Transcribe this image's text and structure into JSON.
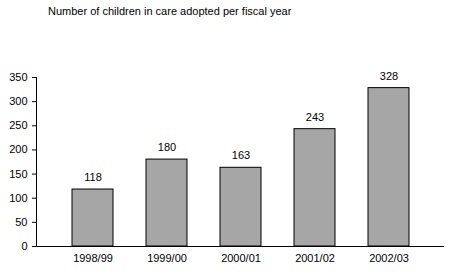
{
  "chart_data": {
    "type": "bar",
    "title": "Number of children in care adopted per fiscal year",
    "categories": [
      "1998/99",
      "1999/00",
      "2000/01",
      "2001/02",
      "2002/03"
    ],
    "values": [
      118,
      180,
      163,
      243,
      328
    ],
    "color": "#a6a6a6",
    "ylim": [
      0,
      350
    ],
    "yticks": [
      0,
      50,
      100,
      150,
      200,
      250,
      300,
      350
    ],
    "grid": false,
    "data_labels": true
  }
}
